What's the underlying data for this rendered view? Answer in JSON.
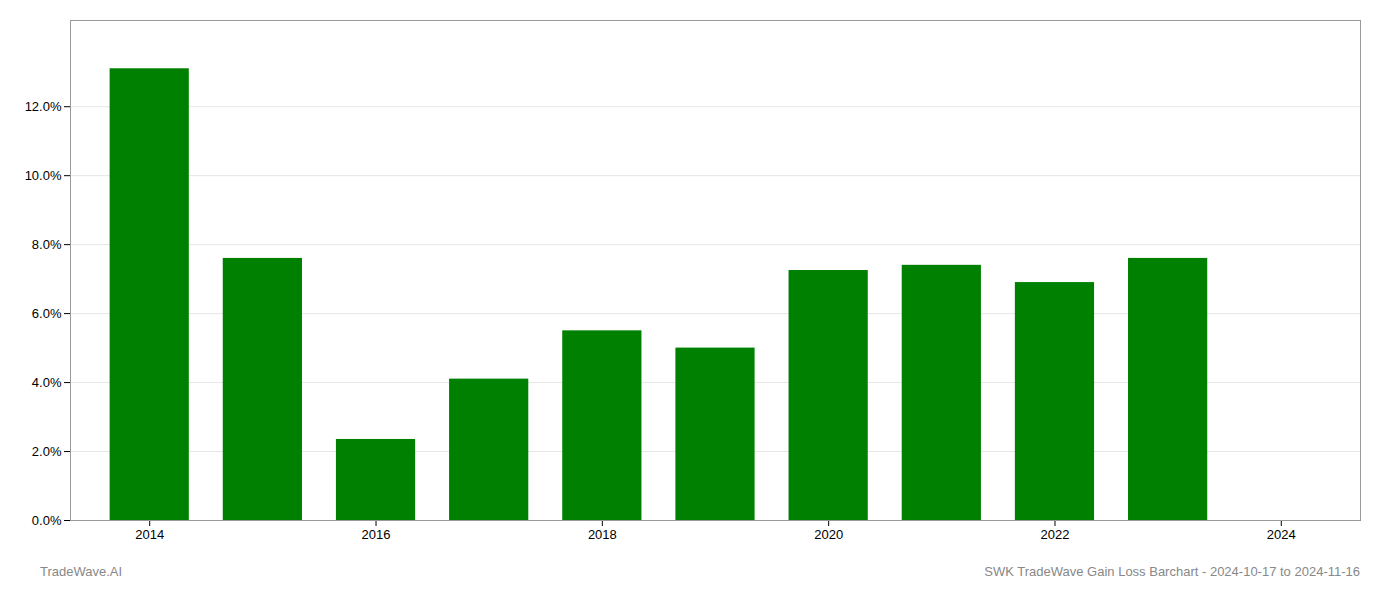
{
  "chart_data": {
    "type": "bar",
    "x": [
      2014,
      2015,
      2016,
      2017,
      2018,
      2019,
      2020,
      2021,
      2022,
      2023
    ],
    "values": [
      0.131,
      0.076,
      0.0235,
      0.041,
      0.055,
      0.05,
      0.0725,
      0.074,
      0.069,
      0.076
    ],
    "color": "#008000",
    "xlim": [
      2013.3,
      2024.7
    ],
    "xticks": [
      2014,
      2016,
      2018,
      2020,
      2022,
      2024
    ],
    "ylim": [
      0.0,
      0.145
    ],
    "yticks": [
      {
        "value": 0.0,
        "label": "0.0%"
      },
      {
        "value": 0.02,
        "label": "2.0%"
      },
      {
        "value": 0.04,
        "label": "4.0%"
      },
      {
        "value": 0.06,
        "label": "6.0%"
      },
      {
        "value": 0.08,
        "label": "8.0%"
      },
      {
        "value": 0.1,
        "label": "10.0%"
      },
      {
        "value": 0.12,
        "label": "12.0%"
      }
    ],
    "grid": true,
    "annotations": [
      "TradeWave.AI",
      "SWK TradeWave Gain Loss Barchart - 2024-10-17 to 2024-11-16"
    ]
  }
}
